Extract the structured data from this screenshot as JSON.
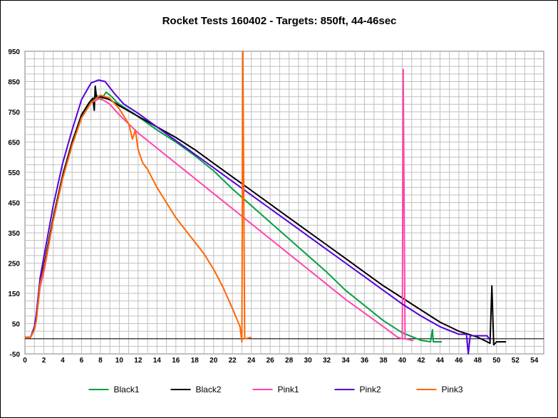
{
  "chart_data": {
    "type": "line",
    "title": "Rocket Tests 160402 - Targets: 850ft, 44-46sec",
    "xlabel": "",
    "ylabel": "",
    "xlim": [
      0,
      55
    ],
    "ylim": [
      -50,
      950
    ],
    "x_ticks": [
      0,
      2,
      4,
      6,
      8,
      10,
      12,
      14,
      16,
      18,
      20,
      22,
      24,
      26,
      28,
      30,
      32,
      34,
      36,
      38,
      40,
      42,
      44,
      46,
      48,
      50,
      52,
      54
    ],
    "y_ticks": [
      -50,
      50,
      150,
      250,
      350,
      450,
      550,
      650,
      750,
      850,
      950
    ],
    "grid": true,
    "legend_position": "bottom",
    "series": [
      {
        "name": "Black1",
        "color": "#00a040",
        "points": [
          [
            0,
            5
          ],
          [
            0.6,
            5
          ],
          [
            1.0,
            30
          ],
          [
            1.2,
            80
          ],
          [
            1.6,
            180
          ],
          [
            2,
            240
          ],
          [
            3,
            400
          ],
          [
            4,
            540
          ],
          [
            5,
            650
          ],
          [
            6,
            740
          ],
          [
            7,
            785
          ],
          [
            7.6,
            805
          ],
          [
            8.1,
            790
          ],
          [
            8.6,
            815
          ],
          [
            9.2,
            800
          ],
          [
            9.8,
            780
          ],
          [
            10.5,
            765
          ],
          [
            11.5,
            745
          ],
          [
            14,
            690
          ],
          [
            16,
            650
          ],
          [
            18,
            605
          ],
          [
            20,
            555
          ],
          [
            22,
            495
          ],
          [
            24,
            440
          ],
          [
            26,
            385
          ],
          [
            28,
            330
          ],
          [
            30,
            275
          ],
          [
            32,
            220
          ],
          [
            34,
            160
          ],
          [
            36,
            110
          ],
          [
            38,
            60
          ],
          [
            40,
            20
          ],
          [
            42,
            -5
          ],
          [
            43,
            -10
          ],
          [
            43.2,
            30
          ],
          [
            43.3,
            -10
          ],
          [
            44,
            -10
          ],
          [
            44.2,
            -10
          ]
        ]
      },
      {
        "name": "Black2",
        "color": "#000000",
        "points": [
          [
            0,
            5
          ],
          [
            0.6,
            5
          ],
          [
            1.0,
            30
          ],
          [
            1.2,
            70
          ],
          [
            1.6,
            180
          ],
          [
            2,
            240
          ],
          [
            3,
            400
          ],
          [
            4,
            540
          ],
          [
            5,
            650
          ],
          [
            6,
            740
          ],
          [
            6.8,
            780
          ],
          [
            7.2,
            795
          ],
          [
            7.35,
            755
          ],
          [
            7.45,
            835
          ],
          [
            7.6,
            795
          ],
          [
            8,
            800
          ],
          [
            9,
            790
          ],
          [
            10,
            770
          ],
          [
            12,
            735
          ],
          [
            14,
            700
          ],
          [
            16,
            665
          ],
          [
            18,
            625
          ],
          [
            20,
            580
          ],
          [
            22,
            535
          ],
          [
            24,
            490
          ],
          [
            26,
            445
          ],
          [
            28,
            400
          ],
          [
            30,
            355
          ],
          [
            32,
            310
          ],
          [
            34,
            265
          ],
          [
            36,
            220
          ],
          [
            38,
            175
          ],
          [
            40,
            135
          ],
          [
            42,
            95
          ],
          [
            44,
            55
          ],
          [
            46,
            25
          ],
          [
            48,
            5
          ],
          [
            49,
            -10
          ],
          [
            49.3,
            -15
          ],
          [
            49.5,
            175
          ],
          [
            49.7,
            -20
          ],
          [
            50,
            -10
          ],
          [
            51,
            -10
          ]
        ]
      },
      {
        "name": "Pink1",
        "color": "#ff44aa",
        "points": [
          [
            0,
            5
          ],
          [
            0.6,
            5
          ],
          [
            1.0,
            30
          ],
          [
            1.2,
            60
          ],
          [
            1.6,
            170
          ],
          [
            2,
            220
          ],
          [
            3,
            390
          ],
          [
            4,
            530
          ],
          [
            5,
            640
          ],
          [
            6,
            730
          ],
          [
            7,
            780
          ],
          [
            8,
            795
          ],
          [
            9,
            775
          ],
          [
            10,
            740
          ],
          [
            12,
            680
          ],
          [
            14,
            630
          ],
          [
            16,
            580
          ],
          [
            18,
            530
          ],
          [
            20,
            480
          ],
          [
            22,
            430
          ],
          [
            24,
            380
          ],
          [
            26,
            330
          ],
          [
            28,
            280
          ],
          [
            30,
            230
          ],
          [
            32,
            180
          ],
          [
            34,
            130
          ],
          [
            36,
            85
          ],
          [
            38,
            40
          ],
          [
            39.5,
            5
          ],
          [
            40,
            0
          ],
          [
            40.1,
            890
          ],
          [
            40.3,
            0
          ],
          [
            41,
            -5
          ],
          [
            41.2,
            -5
          ]
        ]
      },
      {
        "name": "Pink2",
        "color": "#5500dd",
        "points": [
          [
            0,
            5
          ],
          [
            0.6,
            5
          ],
          [
            1.0,
            40
          ],
          [
            1.2,
            80
          ],
          [
            1.6,
            200
          ],
          [
            2,
            270
          ],
          [
            3,
            440
          ],
          [
            4,
            580
          ],
          [
            5,
            690
          ],
          [
            6,
            790
          ],
          [
            7,
            845
          ],
          [
            7.8,
            855
          ],
          [
            8.5,
            850
          ],
          [
            9.5,
            810
          ],
          [
            10.5,
            775
          ],
          [
            12,
            745
          ],
          [
            14,
            700
          ],
          [
            16,
            655
          ],
          [
            18,
            610
          ],
          [
            20,
            565
          ],
          [
            22,
            520
          ],
          [
            24,
            475
          ],
          [
            26,
            430
          ],
          [
            28,
            385
          ],
          [
            30,
            340
          ],
          [
            32,
            295
          ],
          [
            34,
            250
          ],
          [
            36,
            205
          ],
          [
            38,
            160
          ],
          [
            40,
            115
          ],
          [
            42,
            75
          ],
          [
            44,
            40
          ],
          [
            46,
            15
          ],
          [
            46.8,
            15
          ],
          [
            47.0,
            -50
          ],
          [
            47.2,
            10
          ],
          [
            48,
            10
          ],
          [
            49,
            10
          ],
          [
            49.3,
            -5
          ]
        ]
      },
      {
        "name": "Pink3",
        "color": "#ff6600",
        "points": [
          [
            0,
            5
          ],
          [
            0.6,
            5
          ],
          [
            1.0,
            30
          ],
          [
            1.2,
            60
          ],
          [
            1.6,
            180
          ],
          [
            2,
            230
          ],
          [
            3,
            390
          ],
          [
            4,
            530
          ],
          [
            5,
            640
          ],
          [
            6,
            730
          ],
          [
            7,
            780
          ],
          [
            8,
            805
          ],
          [
            9,
            795
          ],
          [
            10,
            760
          ],
          [
            11,
            710
          ],
          [
            11.4,
            660
          ],
          [
            11.7,
            690
          ],
          [
            12,
            625
          ],
          [
            12.5,
            580
          ],
          [
            13,
            560
          ],
          [
            14,
            500
          ],
          [
            15,
            450
          ],
          [
            16,
            400
          ],
          [
            17,
            360
          ],
          [
            18,
            320
          ],
          [
            19,
            280
          ],
          [
            20,
            230
          ],
          [
            21,
            170
          ],
          [
            22,
            100
          ],
          [
            22.8,
            40
          ],
          [
            23,
            -10
          ],
          [
            23.1,
            950
          ],
          [
            23.3,
            0
          ],
          [
            24,
            5
          ]
        ]
      }
    ]
  }
}
